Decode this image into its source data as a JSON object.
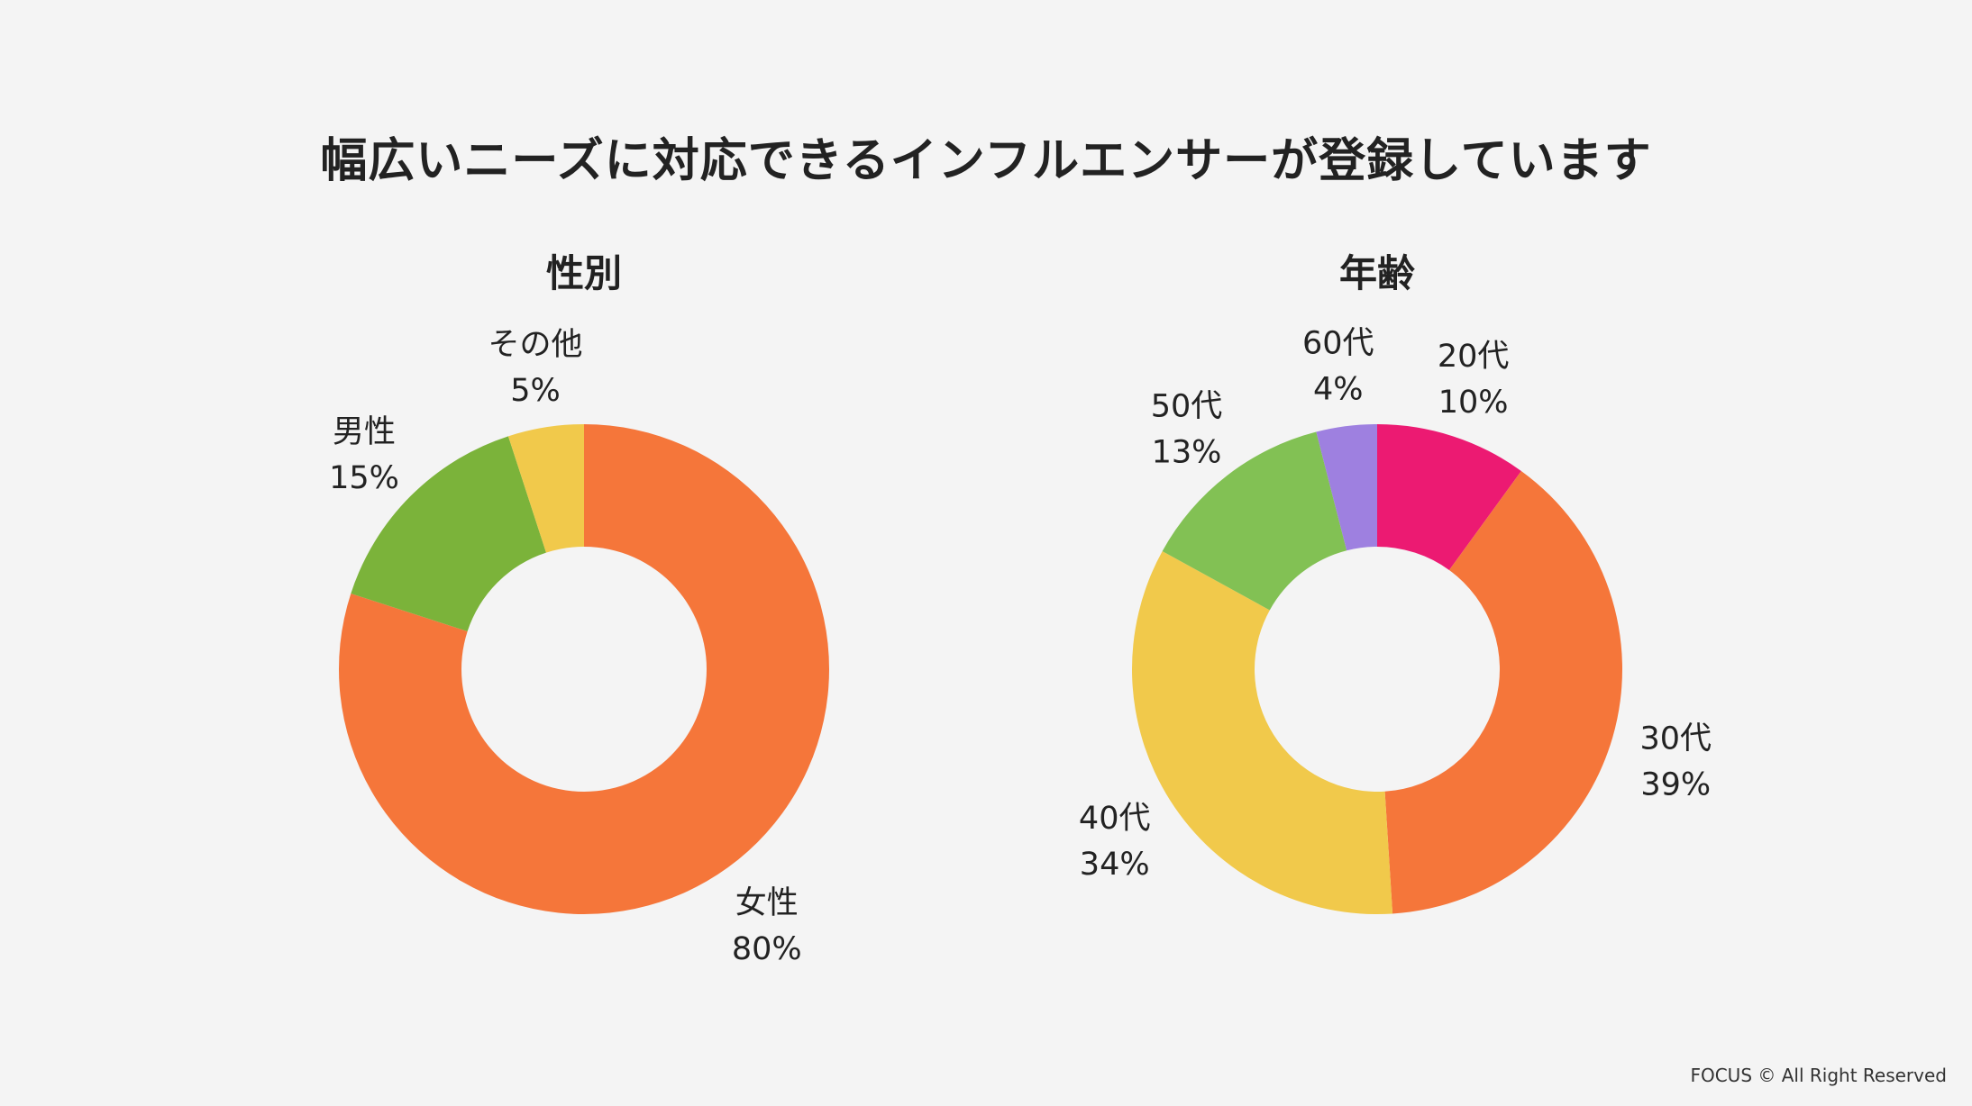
{
  "page": {
    "title": "幅広いニーズに対応できるインフルエンサーが登録しています",
    "footer": "FOCUS © All Right Reserved"
  },
  "chart_data": [
    {
      "type": "pie",
      "id": "gender",
      "title": "性別",
      "donut": true,
      "start_angle_deg": 0,
      "direction": "clockwise",
      "slices": [
        {
          "label": "女性",
          "percent_text": "80%",
          "value": 80,
          "color": "#f5763a"
        },
        {
          "label": "男性",
          "percent_text": "15%",
          "value": 15,
          "color": "#7bb33a"
        },
        {
          "label": "その他",
          "percent_text": "5%",
          "value": 5,
          "color": "#f1c94b"
        }
      ]
    },
    {
      "type": "pie",
      "id": "age",
      "title": "年齢",
      "donut": true,
      "start_angle_deg": 0,
      "direction": "clockwise",
      "slices": [
        {
          "label": "20代",
          "percent_text": "10%",
          "value": 10,
          "color": "#ec1a72"
        },
        {
          "label": "30代",
          "percent_text": "39%",
          "value": 39,
          "color": "#f5763a"
        },
        {
          "label": "40代",
          "percent_text": "34%",
          "value": 34,
          "color": "#f1c94b"
        },
        {
          "label": "50代",
          "percent_text": "13%",
          "value": 13,
          "color": "#82c154"
        },
        {
          "label": "60代",
          "percent_text": "4%",
          "value": 4,
          "color": "#9e80e0"
        }
      ]
    }
  ]
}
